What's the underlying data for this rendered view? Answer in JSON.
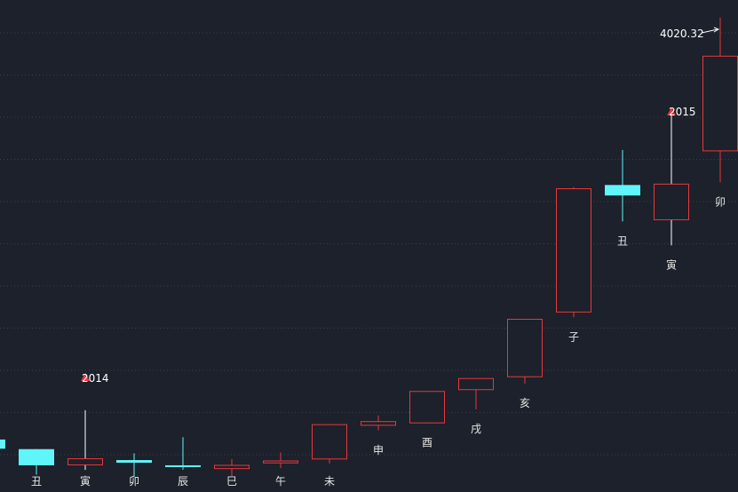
{
  "chart_data": {
    "type": "candlestick",
    "title": "",
    "xlabel": "",
    "ylabel": "",
    "ylim": [
      1850,
      4100
    ],
    "grid": true,
    "colors": {
      "background": "#1c212b",
      "up": "#e8383d",
      "down": "#5ff5fa",
      "grid": "#3a404b",
      "text": "#e6e6e6"
    },
    "candles": [
      {
        "label": "",
        "open": 2090,
        "close": 2048,
        "high": 2090,
        "low": 2048
      },
      {
        "label": "丑",
        "open": 2046,
        "close": 1972,
        "high": 2046,
        "low": 1929
      },
      {
        "label": "寅",
        "open": 1972,
        "close": 2004,
        "high": 2224,
        "low": 1951
      },
      {
        "label": "卯",
        "open": 1996,
        "close": 1984,
        "high": 2027,
        "low": 1918
      },
      {
        "label": "辰",
        "open": 1972,
        "close": 1968,
        "high": 2101,
        "low": 1952
      },
      {
        "label": "巳",
        "open": 1955,
        "close": 1974,
        "high": 2001,
        "low": 1922
      },
      {
        "label": "午",
        "open": 1981,
        "close": 1994,
        "high": 2031,
        "low": 1959
      },
      {
        "label": "未",
        "open": 1999,
        "close": 2160,
        "high": 2160,
        "low": 1981
      },
      {
        "label": "申",
        "open": 2153,
        "close": 2174,
        "high": 2200,
        "low": 2131
      },
      {
        "label": "酉",
        "open": 2164,
        "close": 2312,
        "high": 2312,
        "low": 2164
      },
      {
        "label": "戌",
        "open": 2316,
        "close": 2371,
        "high": 2371,
        "low": 2228
      },
      {
        "label": "亥",
        "open": 2375,
        "close": 2642,
        "high": 2642,
        "low": 2346
      },
      {
        "label": "子",
        "open": 2671,
        "close": 3239,
        "high": 3244,
        "low": 2649
      },
      {
        "label": "丑",
        "open": 3254,
        "close": 3206,
        "high": 3414,
        "low": 3087
      },
      {
        "label": "寅",
        "open": 3093,
        "close": 3260,
        "high": 3583,
        "low": 2978
      },
      {
        "label": "卯",
        "open": 3408,
        "close": 3845,
        "high": 4020.32,
        "low": 3266
      }
    ],
    "annotations": {
      "high_label": "4020.32",
      "year_2014": "2014",
      "year_2015": "2015"
    }
  }
}
